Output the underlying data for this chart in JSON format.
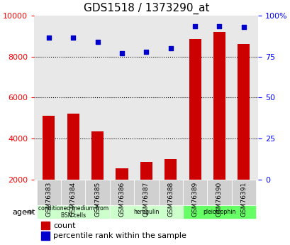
{
  "title": "GDS1518 / 1373290_at",
  "samples": [
    "GSM76383",
    "GSM76384",
    "GSM76385",
    "GSM76386",
    "GSM76387",
    "GSM76388",
    "GSM76389",
    "GSM76390",
    "GSM76391"
  ],
  "counts": [
    5100,
    5200,
    4350,
    2550,
    2850,
    3000,
    8850,
    9200,
    8600
  ],
  "percentiles": [
    86.5,
    86.5,
    84.0,
    77.0,
    78.0,
    80.0,
    93.5,
    93.5,
    93.0
  ],
  "groups": [
    {
      "label": "conditioned medium from\nBSN cells",
      "start": 0,
      "end": 3,
      "color": "#ccffcc"
    },
    {
      "label": "heregulin",
      "start": 3,
      "end": 6,
      "color": "#ccffcc"
    },
    {
      "label": "pleiotrophin",
      "start": 6,
      "end": 9,
      "color": "#66ff66"
    }
  ],
  "ylim_left": [
    2000,
    10000
  ],
  "ylim_right": [
    0,
    100
  ],
  "yticks_left": [
    2000,
    4000,
    6000,
    8000,
    10000
  ],
  "yticks_right": [
    0,
    25,
    50,
    75,
    100
  ],
  "ytick_labels_right": [
    "0",
    "25",
    "50",
    "75",
    "100%"
  ],
  "bar_color": "#cc0000",
  "dot_color": "#0000cc",
  "grid_color": "#000000",
  "agent_label": "agent",
  "legend_count_label": "count",
  "legend_pct_label": "percentile rank within the sample",
  "bar_width": 0.5
}
